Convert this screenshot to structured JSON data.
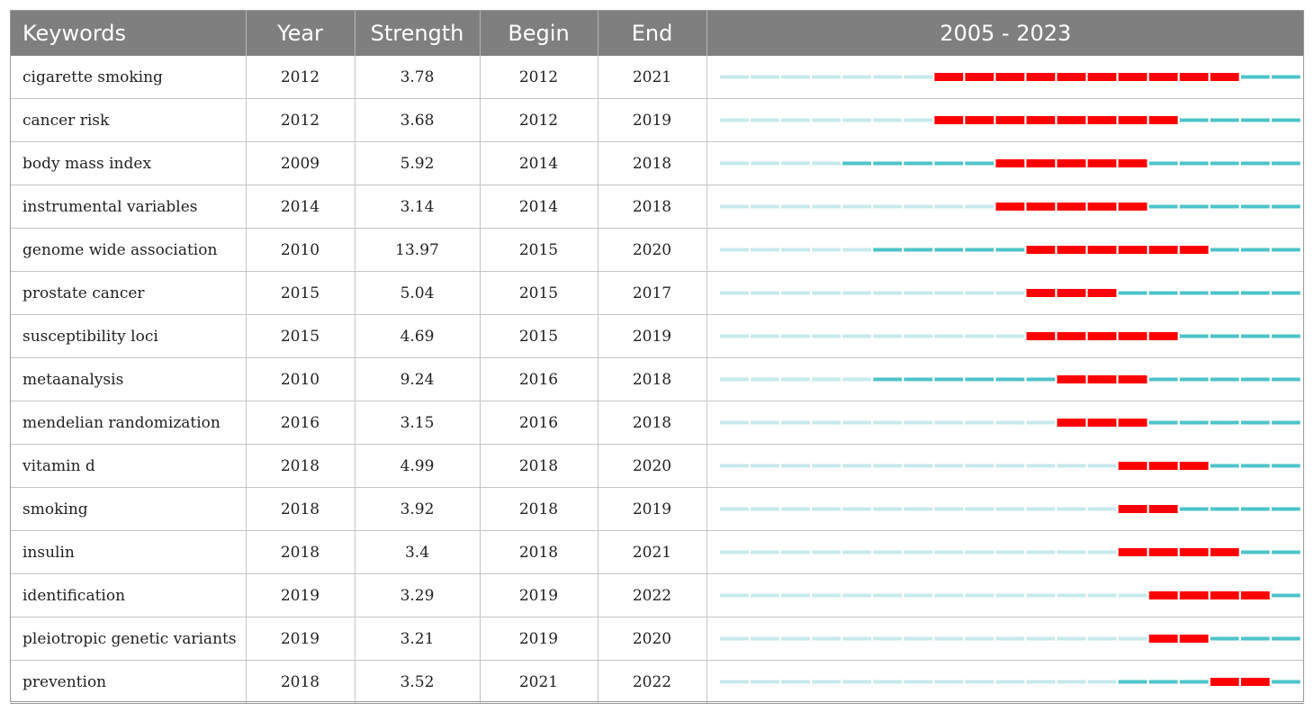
{
  "headers": {
    "keywords": "Keywords",
    "year": "Year",
    "strength": "Strength",
    "begin": "Begin",
    "end": "End",
    "range": "2005 - 2023"
  },
  "colors": {
    "header_bg": "#7f7f7f",
    "burst": "#ff0000",
    "active": "#4ec3c8",
    "inactive": "#c7e9ec"
  },
  "chart_data": {
    "type": "table",
    "title": "",
    "year_range": [
      2005,
      2023
    ],
    "columns": [
      "Keywords",
      "Year",
      "Strength",
      "Begin",
      "End",
      "2005 - 2023"
    ],
    "rows": [
      {
        "keyword": "cigarette smoking",
        "year": "2012",
        "strength": "3.78",
        "begin": "2012",
        "end": "2021"
      },
      {
        "keyword": "cancer risk",
        "year": "2012",
        "strength": "3.68",
        "begin": "2012",
        "end": "2019"
      },
      {
        "keyword": "body mass index",
        "year": "2009",
        "strength": "5.92",
        "begin": "2014",
        "end": "2018"
      },
      {
        "keyword": "instrumental variables",
        "year": "2014",
        "strength": "3.14",
        "begin": "2014",
        "end": "2018"
      },
      {
        "keyword": "genome wide association",
        "year": "2010",
        "strength": "13.97",
        "begin": "2015",
        "end": "2020"
      },
      {
        "keyword": "prostate cancer",
        "year": "2015",
        "strength": "5.04",
        "begin": "2015",
        "end": "2017"
      },
      {
        "keyword": "susceptibility loci",
        "year": "2015",
        "strength": "4.69",
        "begin": "2015",
        "end": "2019"
      },
      {
        "keyword": "metaanalysis",
        "year": "2010",
        "strength": "9.24",
        "begin": "2016",
        "end": "2018"
      },
      {
        "keyword": "mendelian randomization",
        "year": "2016",
        "strength": "3.15",
        "begin": "2016",
        "end": "2018"
      },
      {
        "keyword": "vitamin d",
        "year": "2018",
        "strength": "4.99",
        "begin": "2018",
        "end": "2020"
      },
      {
        "keyword": "smoking",
        "year": "2018",
        "strength": "3.92",
        "begin": "2018",
        "end": "2019"
      },
      {
        "keyword": "insulin",
        "year": "2018",
        "strength": "3.4",
        "begin": "2018",
        "end": "2021"
      },
      {
        "keyword": "identification",
        "year": "2019",
        "strength": "3.29",
        "begin": "2019",
        "end": "2022"
      },
      {
        "keyword": "pleiotropic genetic variants",
        "year": "2019",
        "strength": "3.21",
        "begin": "2019",
        "end": "2020"
      },
      {
        "keyword": "prevention",
        "year": "2018",
        "strength": "3.52",
        "begin": "2021",
        "end": "2022"
      }
    ]
  }
}
